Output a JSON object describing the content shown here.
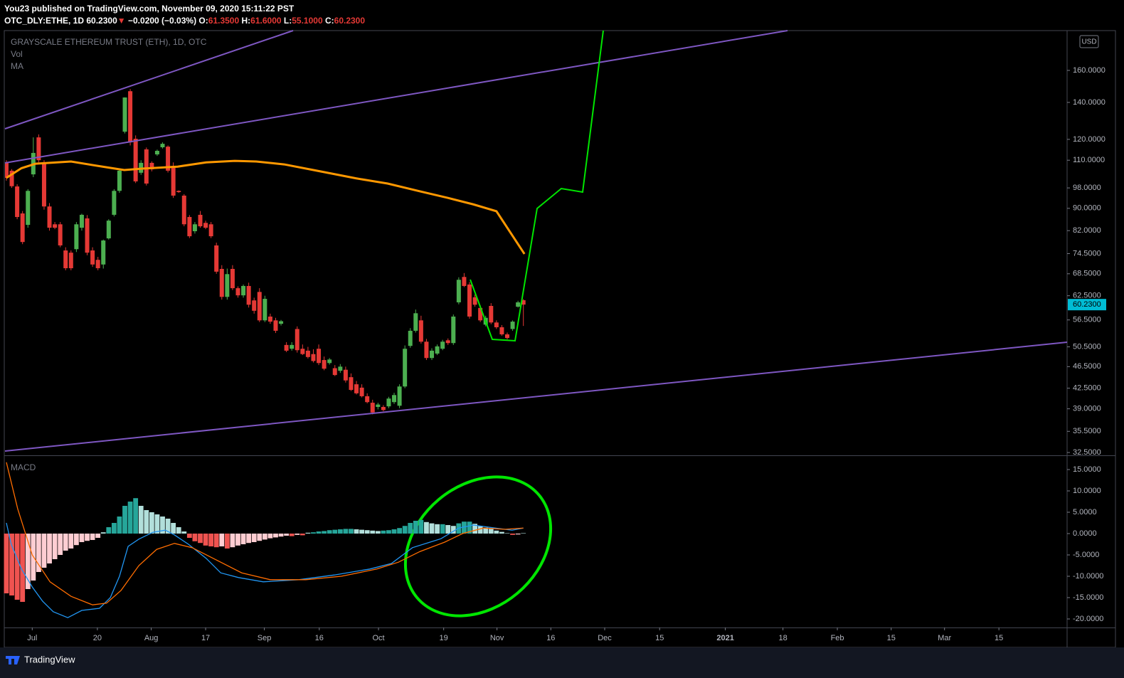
{
  "header": {
    "publisher": "You23 published on TradingView.com, November 09, 2020 15:11:22 PST",
    "symbol": "OTC_DLY:ETHE, 1D",
    "last": "60.2300",
    "arrow": "▼",
    "change": "−0.0200 (−0.03%)",
    "o_label": "O:",
    "o": "61.3500",
    "h_label": "H:",
    "h": "61.6000",
    "l_label": "L:",
    "l": "55.1000",
    "c_label": "C:",
    "c": "60.2300"
  },
  "footer": {
    "brand": "TradingView"
  },
  "chart_data": {
    "type": "candlestick",
    "title": "GRAYSCALE ETHEREUM TRUST (ETH), 1D, OTC",
    "indicators": [
      "Vol",
      "MA"
    ],
    "currency": "USD",
    "up_color": "#4caf50",
    "down_color": "#e53935",
    "log_scale": true,
    "xlim": [
      -0.26,
      196.96
    ],
    "ylim": [
      32.12,
      188.9
    ],
    "xticks": [
      {
        "value": 4.8,
        "label": "Jul"
      },
      {
        "value": 16.9,
        "label": "20"
      },
      {
        "value": 26.9,
        "label": "Aug"
      },
      {
        "value": 37,
        "label": "17"
      },
      {
        "value": 47.9,
        "label": "Sep"
      },
      {
        "value": 58.1,
        "label": "16"
      },
      {
        "value": 69.1,
        "label": "Oct"
      },
      {
        "value": 81.2,
        "label": "19"
      },
      {
        "value": 91.1,
        "label": "Nov"
      },
      {
        "value": 101.1,
        "label": "16"
      },
      {
        "value": 111.1,
        "label": "Dec"
      },
      {
        "value": 121.3,
        "label": "15"
      },
      {
        "value": 133.5,
        "label": "2021"
      },
      {
        "value": 144.2,
        "label": "18"
      },
      {
        "value": 154.3,
        "label": "Feb"
      },
      {
        "value": 164.3,
        "label": "15"
      },
      {
        "value": 174.2,
        "label": "Mar"
      },
      {
        "value": 184.3,
        "label": "15"
      }
    ],
    "yticks": [
      {
        "value": 32.5,
        "label": "32.5000"
      },
      {
        "value": 35.5,
        "label": "35.5000"
      },
      {
        "value": 39,
        "label": "39.0000"
      },
      {
        "value": 42.5,
        "label": "42.5000"
      },
      {
        "value": 46.5,
        "label": "46.5000"
      },
      {
        "value": 50.5,
        "label": "50.5000"
      },
      {
        "value": 56.5,
        "label": "56.5000"
      },
      {
        "value": 62.5,
        "label": "62.5000"
      },
      {
        "value": 68.5,
        "label": "68.5000"
      },
      {
        "value": 74.5,
        "label": "74.5000"
      },
      {
        "value": 82,
        "label": "82.0000"
      },
      {
        "value": 90,
        "label": "90.0000"
      },
      {
        "value": 98,
        "label": "98.0000"
      },
      {
        "value": 110,
        "label": "110.0000"
      },
      {
        "value": 120,
        "label": "120.0000"
      },
      {
        "value": 140,
        "label": "140.0000"
      },
      {
        "value": 160,
        "label": "160.0000"
      }
    ],
    "price_tag": {
      "value": 60.23,
      "label": "60.2300"
    },
    "candles": [
      {
        "open": 108.8,
        "high": 110,
        "low": 101,
        "close": 102.2
      },
      {
        "open": 105.3,
        "high": 106,
        "low": 98,
        "close": 98.7
      },
      {
        "open": 98.6,
        "high": 99.5,
        "low": 86,
        "close": 86.8
      },
      {
        "open": 88.1,
        "high": 89,
        "low": 77.5,
        "close": 78.2
      },
      {
        "open": 84.0,
        "high": 97.5,
        "low": 83,
        "close": 96.8
      },
      {
        "open": 103.7,
        "high": 121,
        "low": 102.5,
        "close": 113.4
      },
      {
        "open": 121,
        "high": 122.5,
        "low": 109,
        "close": 110
      },
      {
        "open": 108.4,
        "high": 110,
        "low": 89.5,
        "close": 90.7
      },
      {
        "open": 90.7,
        "high": 92,
        "low": 82,
        "close": 83.0
      },
      {
        "open": 84.2,
        "high": 85,
        "low": 82.5,
        "close": 83.0
      },
      {
        "open": 84.2,
        "high": 85,
        "low": 76.5,
        "close": 77.1
      },
      {
        "open": 75.5,
        "high": 76.5,
        "low": 69.5,
        "close": 70.1
      },
      {
        "open": 74.8,
        "high": 75.5,
        "low": 69.5,
        "close": 70.1
      },
      {
        "open": 75.9,
        "high": 85,
        "low": 75,
        "close": 84.2
      },
      {
        "open": 83.0,
        "high": 88,
        "low": 82,
        "close": 87.6
      },
      {
        "open": 86.3,
        "high": 87.5,
        "low": 74,
        "close": 74.8
      },
      {
        "open": 75.5,
        "high": 76.5,
        "low": 70.5,
        "close": 71.2
      },
      {
        "open": 72.6,
        "high": 73.5,
        "low": 69.5,
        "close": 70.1
      },
      {
        "open": 71.2,
        "high": 79,
        "low": 70,
        "close": 78.7
      },
      {
        "open": 79.4,
        "high": 86,
        "low": 79,
        "close": 85.5
      },
      {
        "open": 87.6,
        "high": 97.5,
        "low": 87,
        "close": 96.8
      },
      {
        "open": 96.8,
        "high": 106,
        "low": 96,
        "close": 105.3
      },
      {
        "open": 123.9,
        "high": 143,
        "low": 123,
        "close": 142.9
      },
      {
        "open": 146.7,
        "high": 148,
        "low": 117,
        "close": 118.5
      },
      {
        "open": 120.3,
        "high": 122,
        "low": 100,
        "close": 100.7
      },
      {
        "open": 104.4,
        "high": 110,
        "low": 103.5,
        "close": 108.8
      },
      {
        "open": 115.1,
        "high": 116,
        "low": 99,
        "close": 99.8
      },
      {
        "open": 108.8,
        "high": 109.5,
        "low": 105,
        "close": 105.9
      },
      {
        "open": 112.7,
        "high": 115,
        "low": 112,
        "close": 114.4
      },
      {
        "open": 116.1,
        "high": 118.5,
        "low": 115.5,
        "close": 117.8
      },
      {
        "open": 116.4,
        "high": 117,
        "low": 104.5,
        "close": 105.3
      },
      {
        "open": 107.4,
        "high": 109,
        "low": 94,
        "close": 94.9
      },
      {
        "open": 96.8,
        "high": 97,
        "low": 96,
        "close": 96.3
      },
      {
        "open": 94.9,
        "high": 95.5,
        "low": 83.5,
        "close": 84.2
      },
      {
        "open": 86.8,
        "high": 87.5,
        "low": 79.5,
        "close": 80.1
      },
      {
        "open": 81.8,
        "high": 85,
        "low": 81,
        "close": 84.2
      },
      {
        "open": 87.6,
        "high": 89,
        "low": 83,
        "close": 83.5
      },
      {
        "open": 84.7,
        "high": 85.5,
        "low": 82.5,
        "close": 83.0
      },
      {
        "open": 84.2,
        "high": 85,
        "low": 79.5,
        "close": 80.1
      },
      {
        "open": 77.1,
        "high": 78,
        "low": 68.5,
        "close": 69.1
      },
      {
        "open": 69.9,
        "high": 71,
        "low": 61.5,
        "close": 62.2
      },
      {
        "open": 62.2,
        "high": 70,
        "low": 61.5,
        "close": 68.4
      },
      {
        "open": 69.9,
        "high": 71,
        "low": 64,
        "close": 64.5
      },
      {
        "open": 64.5,
        "high": 65,
        "low": 62,
        "close": 62.6
      },
      {
        "open": 62.6,
        "high": 65.5,
        "low": 62,
        "close": 65.1
      },
      {
        "open": 65.1,
        "high": 66,
        "low": 59.5,
        "close": 60.2
      },
      {
        "open": 61.3,
        "high": 62,
        "low": 58,
        "close": 58.7
      },
      {
        "open": 63.5,
        "high": 64.5,
        "low": 56,
        "close": 56.4
      },
      {
        "open": 56.4,
        "high": 62.5,
        "low": 56,
        "close": 61.7
      },
      {
        "open": 57.3,
        "high": 58,
        "low": 55.6,
        "close": 56.1
      },
      {
        "open": 56.4,
        "high": 57,
        "low": 53.5,
        "close": 54.0
      },
      {
        "open": 55.6,
        "high": 56.5,
        "low": 55.2,
        "close": 56.2
      },
      {
        "open": 50.9,
        "high": 51.5,
        "low": 49.4,
        "close": 49.7
      },
      {
        "open": 50.1,
        "high": 51.5,
        "low": 49.7,
        "close": 50.9
      },
      {
        "open": 54.4,
        "high": 55,
        "low": 49.3,
        "close": 49.8
      },
      {
        "open": 50.1,
        "high": 51,
        "low": 48.8,
        "close": 49.0
      },
      {
        "open": 49.7,
        "high": 50.5,
        "low": 48.1,
        "close": 48.4
      },
      {
        "open": 49.0,
        "high": 50,
        "low": 47.3,
        "close": 47.6
      },
      {
        "open": 50.1,
        "high": 51,
        "low": 46.8,
        "close": 47.2
      },
      {
        "open": 47.8,
        "high": 48.5,
        "low": 45.8,
        "close": 46.1
      },
      {
        "open": 47.2,
        "high": 48.2,
        "low": 46.9,
        "close": 47.9
      },
      {
        "open": 46.2,
        "high": 46.8,
        "low": 44.7,
        "close": 44.9
      },
      {
        "open": 45.7,
        "high": 47,
        "low": 45.3,
        "close": 46.5
      },
      {
        "open": 45.9,
        "high": 46.5,
        "low": 43.5,
        "close": 43.9
      },
      {
        "open": 44.5,
        "high": 45.2,
        "low": 42.0,
        "close": 42.2
      },
      {
        "open": 43.2,
        "high": 43.8,
        "low": 41.4,
        "close": 41.6
      },
      {
        "open": 42.6,
        "high": 43.2,
        "low": 40.9,
        "close": 41.1
      },
      {
        "open": 41.1,
        "high": 41.6,
        "low": 39.9,
        "close": 40.1
      },
      {
        "open": 40.0,
        "high": 40.5,
        "low": 38.1,
        "close": 38.4
      },
      {
        "open": 39.3,
        "high": 40.0,
        "low": 38.9,
        "close": 39.7
      },
      {
        "open": 39.3,
        "high": 39.6,
        "low": 38.6,
        "close": 38.8
      },
      {
        "open": 39.4,
        "high": 41.0,
        "low": 39.1,
        "close": 40.7
      },
      {
        "open": 40.1,
        "high": 41.7,
        "low": 39.8,
        "close": 41.3
      },
      {
        "open": 39.5,
        "high": 43.2,
        "low": 39.1,
        "close": 42.8
      },
      {
        "open": 42.8,
        "high": 50.8,
        "low": 42.5,
        "close": 50.1
      },
      {
        "open": 50.7,
        "high": 54.6,
        "low": 50.3,
        "close": 54.0
      },
      {
        "open": 54.0,
        "high": 59.0,
        "low": 53.6,
        "close": 58.1
      },
      {
        "open": 56.4,
        "high": 57.5,
        "low": 51.2,
        "close": 51.6
      },
      {
        "open": 51.6,
        "high": 52.2,
        "low": 47.8,
        "close": 48.2
      },
      {
        "open": 48.2,
        "high": 50.2,
        "low": 47.8,
        "close": 49.7
      },
      {
        "open": 49.1,
        "high": 51.0,
        "low": 48.8,
        "close": 50.6
      },
      {
        "open": 50.1,
        "high": 52.0,
        "low": 49.8,
        "close": 51.6
      },
      {
        "open": 51.9,
        "high": 52.3,
        "low": 50.9,
        "close": 51.3
      },
      {
        "open": 51.3,
        "high": 57.8,
        "low": 50.9,
        "close": 57.3
      },
      {
        "open": 60.8,
        "high": 67.5,
        "low": 60.3,
        "close": 66.8
      },
      {
        "open": 67.6,
        "high": 68.7,
        "low": 64.8,
        "close": 65.1
      },
      {
        "open": 65.5,
        "high": 66.2,
        "low": 56.8,
        "close": 57.3
      },
      {
        "open": 62.1,
        "high": 62.8,
        "low": 59.7,
        "close": 60.2
      },
      {
        "open": 59.4,
        "high": 60.1,
        "low": 56.0,
        "close": 56.4
      },
      {
        "open": 55.4,
        "high": 57.5,
        "low": 55.0,
        "close": 57.0
      },
      {
        "open": 59.9,
        "high": 60.6,
        "low": 55.5,
        "close": 55.9
      },
      {
        "open": 55.9,
        "high": 56.4,
        "low": 54.4,
        "close": 54.8
      },
      {
        "open": 54.8,
        "high": 55.3,
        "low": 52.9,
        "close": 53.2
      },
      {
        "open": 53.2,
        "high": 53.6,
        "low": 52.1,
        "close": 52.4
      },
      {
        "open": 54.4,
        "high": 56.4,
        "low": 54.0,
        "close": 56.1
      },
      {
        "open": 59.7,
        "high": 61.2,
        "low": 59.5,
        "close": 60.8
      },
      {
        "open": 61.35,
        "high": 61.6,
        "low": 55.1,
        "close": 60.23
      }
    ],
    "ma": {
      "color": "#ff9800",
      "x": [
        0,
        2.8,
        5.4,
        12,
        18.6,
        21.9,
        25.2,
        31.8,
        37.1,
        42.4,
        46.4,
        51.6,
        58.3,
        64.9,
        70.8,
        76.8,
        82.0,
        86.7,
        91,
        96.2
      ],
      "values": [
        102.2,
        106.4,
        108.4,
        109.4,
        106.8,
        105.6,
        106.2,
        107.1,
        109.0,
        109.7,
        109.4,
        108.1,
        105.0,
        102.0,
        99.8,
        96.6,
        94.0,
        91.5,
        88.9,
        74.4
      ]
    },
    "macd": {
      "title": "MACD",
      "ylim": [
        -22,
        18.17
      ],
      "yticks": [
        {
          "value": 15,
          "label": "15.0000"
        },
        {
          "value": 10,
          "label": "10.0000"
        },
        {
          "value": 5,
          "label": "5.0000"
        },
        {
          "value": 0,
          "label": "0.0000"
        },
        {
          "value": -5,
          "label": "-5.0000"
        },
        {
          "value": -10,
          "label": "-10.0000"
        },
        {
          "value": -15,
          "label": "-15.0000"
        },
        {
          "value": -20,
          "label": "-20.0000"
        }
      ],
      "hist_colors": {
        "pos_grow": "#26a69a",
        "pos_fall": "#b2dfdb",
        "neg_grow": "#ef5350",
        "neg_fall": "#ffcdd2"
      },
      "histogram": [
        -14,
        -14.5,
        -15.5,
        -16,
        -13,
        -11,
        -9,
        -8,
        -7,
        -6,
        -5,
        -4,
        -3.5,
        -2.7,
        -2,
        -1.7,
        -1.5,
        -1,
        0.3,
        1.5,
        2.5,
        4,
        6.5,
        7.5,
        8.3,
        6.5,
        5.5,
        5,
        4.5,
        4,
        3.5,
        2.5,
        1.5,
        0.5,
        -1,
        -1.8,
        -2.2,
        -2.8,
        -3,
        -3.2,
        -3,
        -3.5,
        -3.2,
        -2.8,
        -2.5,
        -2.2,
        -2,
        -1.7,
        -1.4,
        -1.1,
        -0.9,
        -0.7,
        -0.5,
        -0.6,
        -0.3,
        -0.4,
        0.2,
        0.3,
        0.5,
        0.6,
        0.8,
        0.9,
        1,
        1.1,
        1.1,
        1.0,
        0.9,
        0.8,
        0.7,
        0.6,
        0.7,
        0.8,
        1,
        1.3,
        1.8,
        2.5,
        3,
        3.2,
        2.7,
        2.4,
        2.2,
        2.2,
        2,
        1.8,
        2.4,
        2.8,
        2.8,
        2.3,
        1.8,
        1.4,
        1.1,
        0.7,
        0.4,
        0.1,
        -0.3,
        -0.2,
        0.1
      ],
      "series": [
        {
          "color": "#2196f3",
          "x": [
            0,
            0.9,
            2.8,
            4.8,
            6.7,
            8.7,
            11.4,
            14,
            17.3,
            19.3,
            21,
            22.6,
            24.6,
            27.2,
            29.5,
            31.2,
            33.8,
            37.1,
            39.8,
            43.1,
            47.7,
            54.3,
            60.9,
            67.5,
            71.5,
            75.4,
            80.7,
            84,
            86.7,
            91.3,
            93.9,
            96
          ],
          "values": [
            2.5,
            -2.5,
            -8.3,
            -12.5,
            -15.8,
            -18.3,
            -19.7,
            -18,
            -17.5,
            -15,
            -10,
            -3,
            -1.3,
            0.3,
            0.8,
            -0.3,
            -2.5,
            -5.8,
            -9.2,
            -10.3,
            -11.3,
            -10.8,
            -9.7,
            -8.3,
            -7,
            -3.3,
            -1.2,
            1.3,
            2,
            1.2,
            0.8,
            1.3
          ]
        },
        {
          "color": "#ff6d00",
          "x": [
            0,
            2.1,
            4.8,
            8.1,
            12,
            16,
            18.6,
            21.3,
            24.6,
            27.9,
            31.2,
            34.5,
            38.4,
            43.7,
            49,
            55.6,
            62.2,
            68.8,
            72.8,
            76.8,
            81.4,
            84.7,
            88.6,
            92.6,
            96
          ],
          "values": [
            16.7,
            5.8,
            -5,
            -11.3,
            -14.7,
            -16.7,
            -16.3,
            -13.3,
            -7.5,
            -3.7,
            -2.3,
            -3.3,
            -5.8,
            -9.2,
            -10.8,
            -10.8,
            -10,
            -8.3,
            -6.7,
            -4.2,
            -2,
            0,
            1.3,
            1,
            1.3
          ]
        }
      ]
    }
  }
}
